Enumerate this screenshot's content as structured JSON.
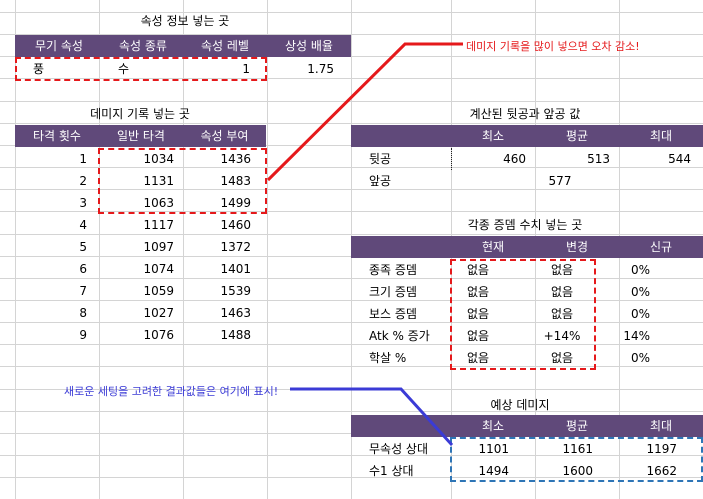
{
  "colors": {
    "header_bg": "#60497a",
    "header_text": "#ffffff",
    "red_annotation": "#e5191b",
    "blue_annotation": "#3b3bd6",
    "blue_box": "#2e75b6",
    "grid": "#d4d4d4"
  },
  "attribute_info": {
    "title": "속성 정보 넣는 곳",
    "headers": [
      "무기 속성",
      "속성 종류",
      "속성 레벨",
      "상성 배율"
    ],
    "values": [
      "풍",
      "수",
      "1",
      "1.75"
    ]
  },
  "damage_log": {
    "title": "데미지 기록 넣는 곳",
    "headers": [
      "타격 횟수",
      "일반 타격",
      "속성 부여"
    ],
    "rows": [
      [
        "1",
        "1034",
        "1436"
      ],
      [
        "2",
        "1131",
        "1483"
      ],
      [
        "3",
        "1063",
        "1499"
      ],
      [
        "4",
        "1117",
        "1460"
      ],
      [
        "5",
        "1097",
        "1372"
      ],
      [
        "6",
        "1074",
        "1401"
      ],
      [
        "7",
        "1059",
        "1539"
      ],
      [
        "8",
        "1027",
        "1463"
      ],
      [
        "9",
        "1076",
        "1488"
      ]
    ]
  },
  "computed": {
    "title": "계산된 뒷공과 앞공 값",
    "headers": [
      "최소",
      "평균",
      "최대"
    ],
    "rows": [
      {
        "label": "뒷공",
        "min": "460",
        "avg": "513",
        "max": "544"
      },
      {
        "label": "앞공",
        "value": "577"
      }
    ]
  },
  "buffs": {
    "title": "각종 증뎀 수치 넣는 곳",
    "headers": [
      "현재",
      "변경",
      "신규"
    ],
    "rows": [
      [
        "종족 증뎀",
        "없음",
        "없음",
        "0%"
      ],
      [
        "크기 증뎀",
        "없음",
        "없음",
        "0%"
      ],
      [
        "보스 증뎀",
        "없음",
        "없음",
        "0%"
      ],
      [
        "Atk % 증가",
        "없음",
        "+14%",
        "14%"
      ],
      [
        "학살 %",
        "없음",
        "없음",
        "0%"
      ]
    ]
  },
  "expected": {
    "title": "예상 데미지",
    "headers": [
      "최소",
      "평균",
      "최대"
    ],
    "rows": [
      [
        "무속성 상대",
        "1101",
        "1161",
        "1197"
      ],
      [
        "수1 상대",
        "1494",
        "1600",
        "1662"
      ]
    ]
  },
  "annotations": {
    "red": "데미지 기록을 많이 넣으면 오차 감소!",
    "blue": "새로운 세팅을 고려한 결과값들은 여기에 표시!"
  }
}
